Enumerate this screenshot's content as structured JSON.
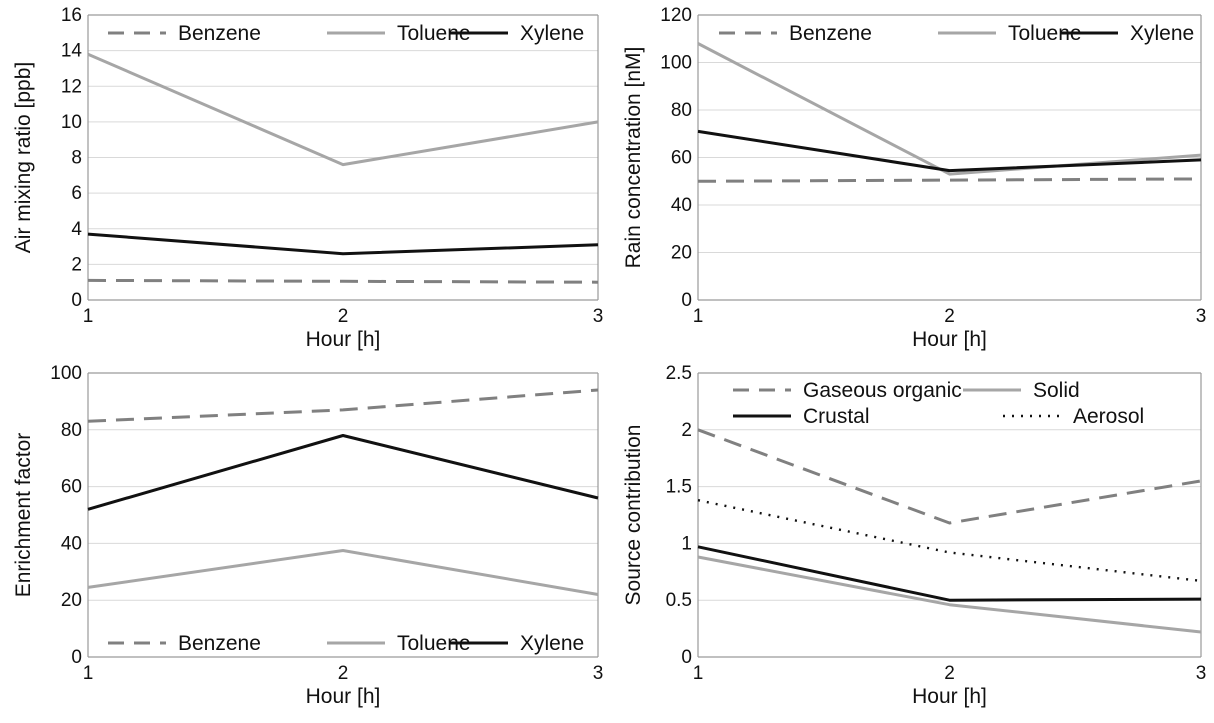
{
  "figure": {
    "charts": 4
  },
  "colors": {
    "dashed": "#808080",
    "light": "#a6a6a6",
    "dark": "#111111",
    "dotted": "#111111",
    "grid": "#d9d9d9",
    "axis": "#9a9a9a"
  },
  "chart_data": [
    {
      "type": "line",
      "x": [
        1,
        2,
        3
      ],
      "xlabel": "Hour [h]",
      "ylabel": "Air mixing ratio [ppb]",
      "xlim": [
        1,
        3
      ],
      "ylim": [
        0,
        16
      ],
      "xticks": [
        "1",
        "2",
        "3"
      ],
      "yticks": [
        "0",
        "2",
        "4",
        "6",
        "8",
        "10",
        "12",
        "14",
        "16"
      ],
      "grid": true,
      "legend_position": "top",
      "series": [
        {
          "name": "Benzene",
          "values": [
            1.1,
            1.05,
            1.0
          ],
          "style": "dashed"
        },
        {
          "name": "Toluene",
          "values": [
            13.8,
            7.6,
            10.0
          ],
          "style": "light"
        },
        {
          "name": "Xylene",
          "values": [
            3.7,
            2.6,
            3.1
          ],
          "style": "dark"
        }
      ]
    },
    {
      "type": "line",
      "x": [
        1,
        2,
        3
      ],
      "xlabel": "Hour [h]",
      "ylabel": "Rain concentration [nM]",
      "xlim": [
        1,
        3
      ],
      "ylim": [
        0,
        120
      ],
      "xticks": [
        "1",
        "2",
        "3"
      ],
      "yticks": [
        "0",
        "20",
        "40",
        "60",
        "80",
        "100",
        "120"
      ],
      "grid": true,
      "legend_position": "top",
      "series": [
        {
          "name": "Benzene",
          "values": [
            50,
            50.5,
            51
          ],
          "style": "dashed"
        },
        {
          "name": "Toluene",
          "values": [
            108,
            53,
            61
          ],
          "style": "light"
        },
        {
          "name": "Xylene",
          "values": [
            71,
            54.5,
            59
          ],
          "style": "dark"
        }
      ]
    },
    {
      "type": "line",
      "x": [
        1,
        2,
        3
      ],
      "xlabel": "Hour [h]",
      "ylabel": "Enrichment factor",
      "xlim": [
        1,
        3
      ],
      "ylim": [
        0,
        100
      ],
      "xticks": [
        "1",
        "2",
        "3"
      ],
      "yticks": [
        "0",
        "20",
        "40",
        "60",
        "80",
        "100"
      ],
      "grid": true,
      "legend_position": "bottom",
      "series": [
        {
          "name": "Benzene",
          "values": [
            83,
            87,
            94
          ],
          "style": "dashed"
        },
        {
          "name": "Toluene",
          "values": [
            24.5,
            37.5,
            22
          ],
          "style": "light"
        },
        {
          "name": "Xylene",
          "values": [
            52,
            78,
            56
          ],
          "style": "dark"
        }
      ]
    },
    {
      "type": "line",
      "x": [
        1,
        2,
        3
      ],
      "xlabel": "Hour [h]",
      "ylabel": "Source contribution",
      "xlim": [
        1,
        3
      ],
      "ylim": [
        0,
        2.5
      ],
      "xticks": [
        "1",
        "2",
        "3"
      ],
      "yticks": [
        "0",
        "0.5",
        "1",
        "1.5",
        "2",
        "2.5"
      ],
      "grid": true,
      "legend_position": "top",
      "series": [
        {
          "name": "Gaseous organic",
          "values": [
            2.0,
            1.18,
            1.55
          ],
          "style": "dashed"
        },
        {
          "name": "Solid",
          "values": [
            0.88,
            0.46,
            0.22
          ],
          "style": "light"
        },
        {
          "name": "Crustal",
          "values": [
            0.97,
            0.5,
            0.51
          ],
          "style": "dark"
        },
        {
          "name": "Aerosol",
          "values": [
            1.38,
            0.92,
            0.67
          ],
          "style": "dotted"
        }
      ]
    }
  ]
}
